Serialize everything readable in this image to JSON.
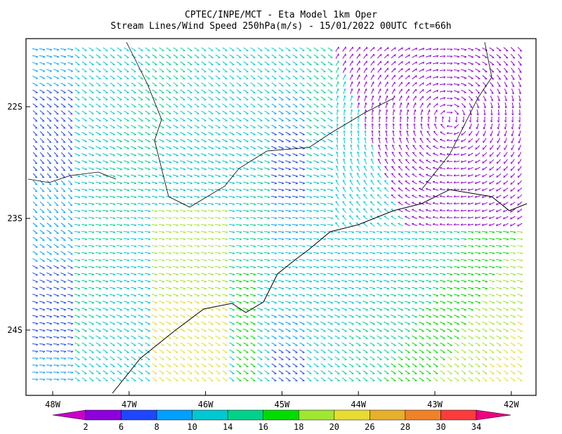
{
  "header": {
    "title": "CPTEC/INPE/MCT -  Eta Model 1km Oper",
    "subtitle": "Stream Lines/Wind Speed 250hPa(m/s) - 15/01/2022 00UTC fct=66h"
  },
  "map": {
    "lat_labels": [
      "22S",
      "23S",
      "24S"
    ],
    "lon_labels": [
      "48W",
      "47W",
      "46W",
      "45W",
      "44W",
      "43W",
      "42W"
    ]
  },
  "colorbar": {
    "labels": [
      "2",
      "6",
      "8",
      "10",
      "14",
      "16",
      "18",
      "20",
      "26",
      "28",
      "30",
      "34"
    ],
    "colors": [
      "#c800c8",
      "#8c00dc",
      "#1e46ff",
      "#00a0ff",
      "#00c8d2",
      "#00d28c",
      "#00dc00",
      "#a0e632",
      "#e6dc32",
      "#e6af2d",
      "#f08228",
      "#fa3c3c",
      "#f00082"
    ]
  }
}
